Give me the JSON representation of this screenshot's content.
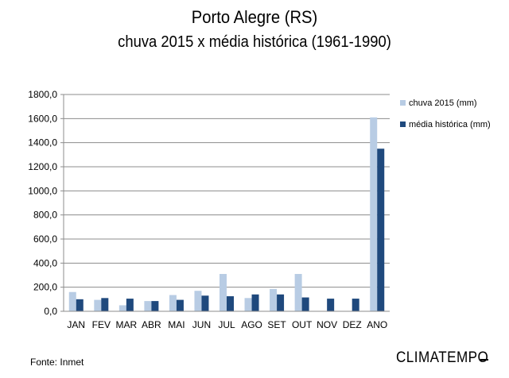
{
  "chart_data": {
    "type": "bar",
    "title": "Porto Alegre (RS)",
    "subtitle": "chuva 2015 x média histórica (1961-1990)",
    "categories": [
      "JAN",
      "FEV",
      "MAR",
      "ABR",
      "MAI",
      "JUN",
      "JUL",
      "AGO",
      "SET",
      "OUT",
      "NOV",
      "DEZ",
      "ANO"
    ],
    "series": [
      {
        "name": "chuva 2015 (mm)",
        "color": "#b8cce4",
        "values": [
          160,
          95,
          50,
          85,
          135,
          170,
          310,
          110,
          185,
          310,
          0,
          0,
          1610
        ]
      },
      {
        "name": "média histórica (mm)",
        "color": "#1f497d",
        "values": [
          100,
          110,
          105,
          85,
          95,
          130,
          125,
          140,
          140,
          115,
          105,
          105,
          1350
        ]
      }
    ],
    "ylim": [
      0,
      1800
    ],
    "yticks": [
      "0,0",
      "200,0",
      "400,0",
      "600,0",
      "800,0",
      "1000,0",
      "1200,0",
      "1400,0",
      "1600,0",
      "1800,0"
    ],
    "grid": true,
    "legend": "right"
  },
  "footer": {
    "source": "Fonte: Inmet",
    "brand": "CLIMATEMPO"
  }
}
